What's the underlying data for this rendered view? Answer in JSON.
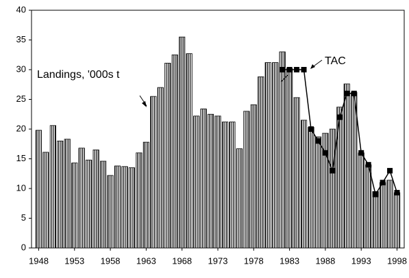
{
  "chart_data": {
    "type": "bar",
    "x": [
      1948,
      1949,
      1950,
      1951,
      1952,
      1953,
      1954,
      1955,
      1956,
      1957,
      1958,
      1959,
      1960,
      1961,
      1962,
      1963,
      1964,
      1965,
      1966,
      1967,
      1968,
      1969,
      1970,
      1971,
      1972,
      1973,
      1974,
      1975,
      1976,
      1977,
      1978,
      1979,
      1980,
      1981,
      1982,
      1983,
      1984,
      1985,
      1986,
      1987,
      1988,
      1989,
      1990,
      1991,
      1992,
      1993,
      1994,
      1995,
      1996,
      1997,
      1998
    ],
    "series": [
      {
        "name": "Landings, '000s t",
        "type": "bar",
        "color": "#000000",
        "values": [
          19.8,
          16.1,
          20.6,
          18.0,
          18.3,
          14.3,
          16.8,
          14.8,
          16.5,
          14.6,
          12.2,
          13.8,
          13.7,
          13.5,
          16.0,
          17.8,
          25.5,
          27.0,
          31.1,
          32.5,
          35.5,
          32.7,
          22.2,
          23.4,
          22.5,
          22.2,
          21.2,
          21.2,
          16.7,
          23.0,
          24.1,
          28.8,
          31.2,
          31.2,
          33.0,
          30.2,
          25.3,
          21.5,
          20.3,
          18.7,
          19.3,
          20.0,
          23.7,
          27.6,
          26.2,
          16.0,
          14.0,
          9.5,
          11.0,
          11.4,
          9.3
        ]
      },
      {
        "name": "TAC",
        "type": "line",
        "color": "#000000",
        "values": [
          null,
          null,
          null,
          null,
          null,
          null,
          null,
          null,
          null,
          null,
          null,
          null,
          null,
          null,
          null,
          null,
          null,
          null,
          null,
          null,
          null,
          null,
          null,
          null,
          null,
          null,
          null,
          null,
          null,
          null,
          null,
          null,
          null,
          null,
          30,
          30,
          30,
          30,
          20,
          18,
          16,
          13,
          22,
          26,
          26,
          16,
          14,
          9,
          11,
          13,
          9.3
        ]
      }
    ],
    "xlim": [
      1947,
      1999
    ],
    "xticks": [
      1948,
      1953,
      1958,
      1963,
      1968,
      1973,
      1978,
      1983,
      1988,
      1993,
      1998
    ],
    "ylim": [
      0,
      40
    ],
    "yticks": [
      0,
      5,
      10,
      15,
      20,
      25,
      30,
      35,
      40
    ],
    "grid": false
  }
}
